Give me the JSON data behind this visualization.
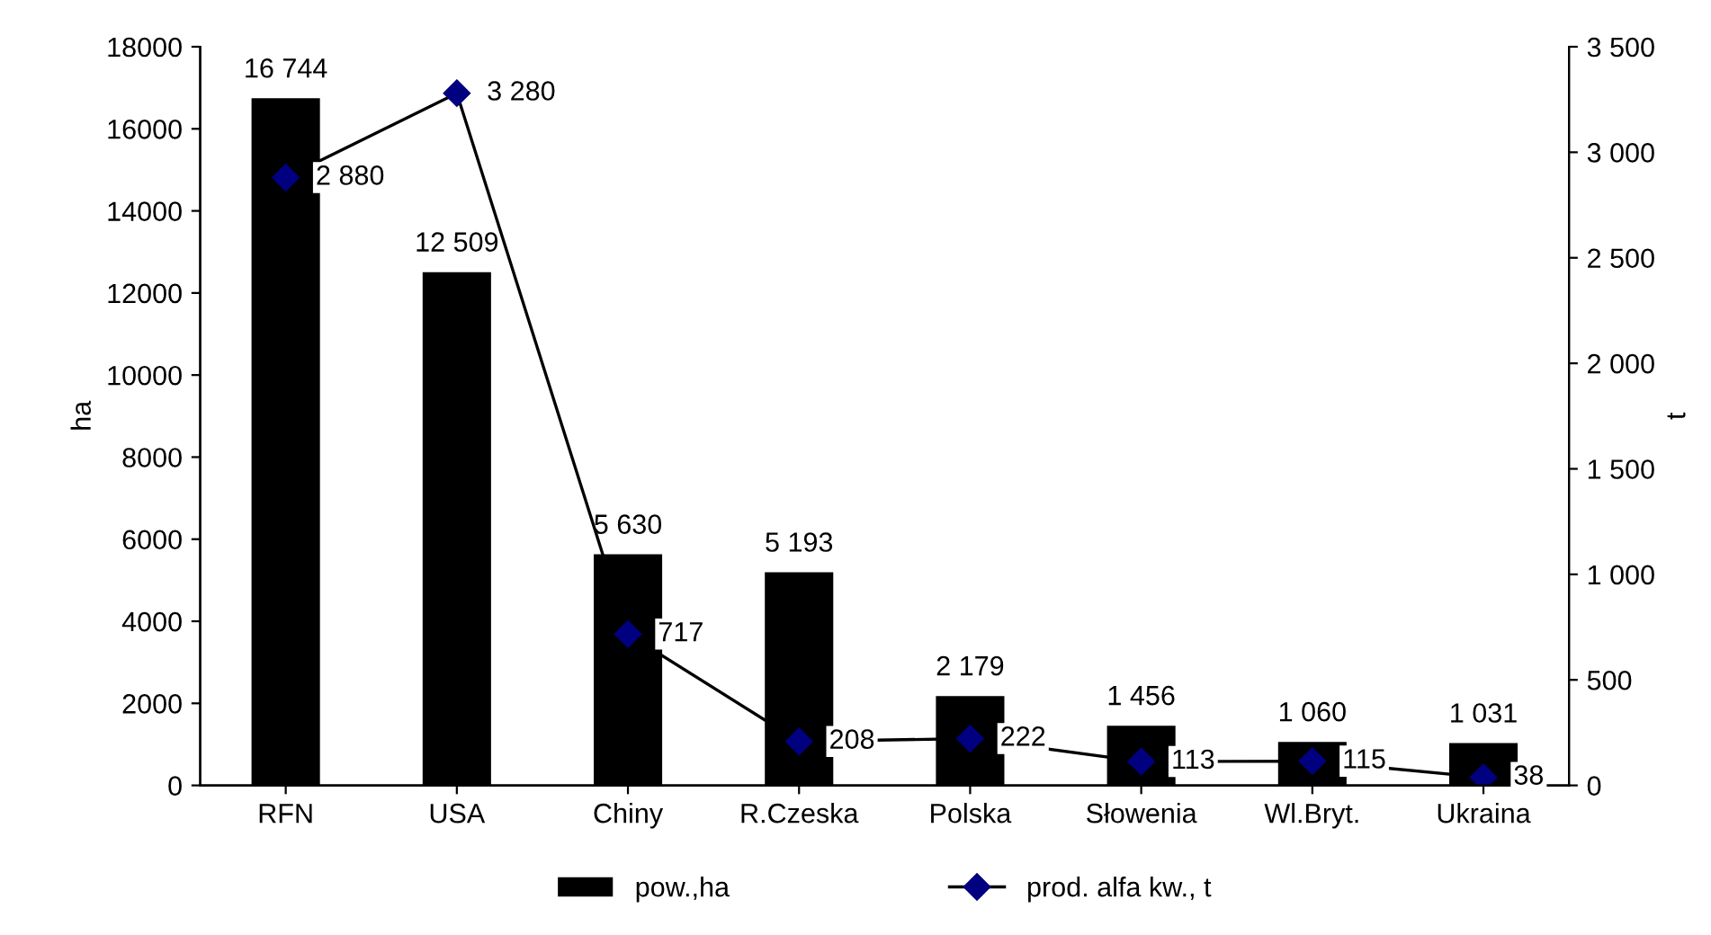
{
  "chart_data": {
    "type": "bar",
    "ylabel": "ha",
    "y2label": "t",
    "categories": [
      "RFN",
      "USA",
      "Chiny",
      "R.Czeska",
      "Polska",
      "Słowenia",
      "Wl.Bryt.",
      "Ukraina"
    ],
    "series": [
      {
        "name": "pow.,ha",
        "color": "#000000",
        "values": [
          16744,
          12509,
          5630,
          5193,
          2179,
          1456,
          1060,
          1031
        ],
        "value_labels": [
          "16 744",
          "12 509",
          "5 630",
          "5 193",
          "2 179",
          "1 456",
          "1 060",
          "1 031"
        ]
      },
      {
        "name": "prod. alfa kw., t",
        "type": "line",
        "axis": "y2",
        "color": "#000080",
        "marker": "diamond",
        "line_style": "solid",
        "values": [
          2880,
          3280,
          717,
          208,
          222,
          113,
          115,
          38
        ],
        "value_labels": [
          "2 880",
          "3 280",
          "717",
          "208",
          "222",
          "113",
          "115",
          "38"
        ]
      }
    ],
    "ylim": [
      0,
      18000
    ],
    "yticks": [
      0,
      2000,
      4000,
      6000,
      8000,
      10000,
      12000,
      14000,
      16000,
      18000
    ],
    "y2lim": [
      0,
      3500
    ],
    "y2ticks": [
      0,
      {
        "value": 500,
        "label": "500"
      },
      {
        "value": 1000,
        "label": "1 000"
      },
      {
        "value": 1500,
        "label": "1 500"
      },
      {
        "value": 2000,
        "label": "2 000"
      },
      {
        "value": 2500,
        "label": "2 500"
      },
      {
        "value": 3000,
        "label": "3 000"
      },
      {
        "value": 3500,
        "label": "3 500"
      }
    ],
    "grid": false,
    "legend": "bottom"
  }
}
